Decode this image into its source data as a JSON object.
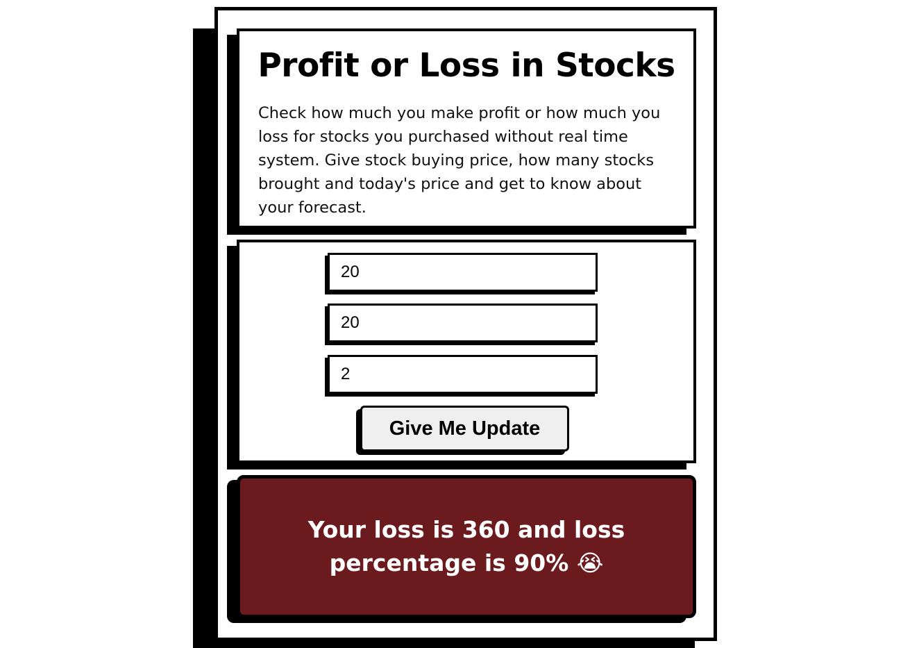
{
  "header": {
    "title": "Profit or Loss in Stocks",
    "description": "Check how much you make profit or how much you loss for stocks you purchased without real time system. Give stock buying price, how many stocks brought and today's price and get to know about your forecast."
  },
  "form": {
    "purchase_price_value": "20",
    "quantity_value": "20",
    "current_price_value": "2",
    "submit_label": "Give Me Update"
  },
  "result": {
    "message": "Your loss is 360 and loss percentage is 90%",
    "emoji": "😭",
    "background_color": "#6b1a1e"
  }
}
